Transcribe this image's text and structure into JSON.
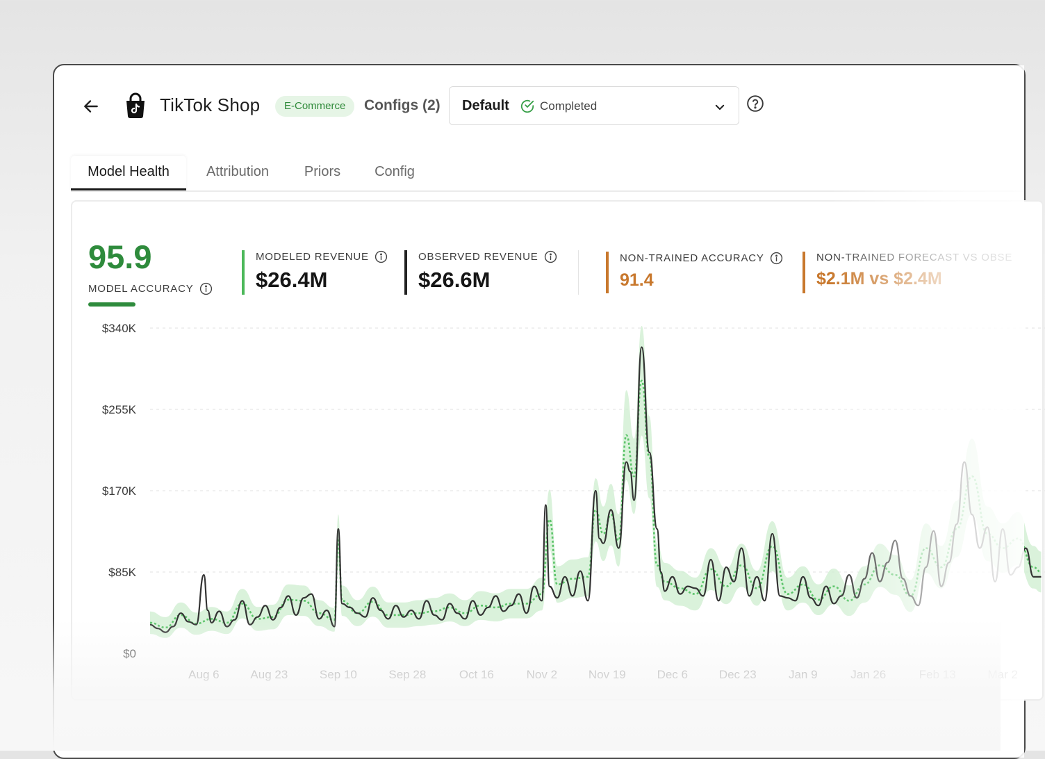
{
  "header": {
    "app_title": "TikTok Shop",
    "category_badge": "E-Commerce",
    "configs_label": "Configs (2)",
    "config_select": {
      "name": "Default",
      "status": "Completed"
    }
  },
  "tabs": [
    {
      "label": "Model Health",
      "active": true
    },
    {
      "label": "Attribution",
      "active": false
    },
    {
      "label": "Priors",
      "active": false
    },
    {
      "label": "Config",
      "active": false
    }
  ],
  "metrics": {
    "model_accuracy": {
      "value": "95.9",
      "label": "MODEL ACCURACY",
      "color": "#2e8b3c"
    },
    "modeled_revenue": {
      "label": "MODELED REVENUE",
      "value": "$26.4M",
      "color": "#4cb85a"
    },
    "observed_revenue": {
      "label": "OBSERVED REVENUE",
      "value": "$26.6M",
      "color": "#222222"
    },
    "non_trained_accuracy": {
      "label": "NON-TRAINED ACCURACY",
      "value": "91.4",
      "color": "#c8782d"
    },
    "non_trained_forecast": {
      "label": "NON-TRAINED FORECAST VS OBSE",
      "value": "$2.1M vs $2.4M",
      "color": "#c8782d"
    }
  },
  "chart_data": {
    "type": "line",
    "title": "",
    "xlabel": "",
    "ylabel": "",
    "ylim": [
      0,
      340000
    ],
    "y_ticks": [
      {
        "value": 340000,
        "label": "$340K"
      },
      {
        "value": 255000,
        "label": "$255K"
      },
      {
        "value": 170000,
        "label": "$170K"
      },
      {
        "value": 85000,
        "label": "$85K"
      },
      {
        "value": 0,
        "label": "$0"
      }
    ],
    "x_ticks": [
      {
        "day": 24,
        "label": "Aug 6"
      },
      {
        "day": 41,
        "label": "Aug 23"
      },
      {
        "day": 59,
        "label": "Sep 10"
      },
      {
        "day": 77,
        "label": "Sep 28"
      },
      {
        "day": 95,
        "label": "Oct 16"
      },
      {
        "day": 112,
        "label": "Nov 2"
      },
      {
        "day": 129,
        "label": "Nov 19"
      },
      {
        "day": 146,
        "label": "Dec 6"
      },
      {
        "day": 163,
        "label": "Dec 23"
      },
      {
        "day": 180,
        "label": "Jan 9"
      },
      {
        "day": 197,
        "label": "Jan 26"
      },
      {
        "day": 215,
        "label": "Feb 13"
      },
      {
        "day": 232,
        "label": "Mar 2"
      }
    ],
    "x_range": [
      10,
      243
    ],
    "series_colors": {
      "observed": "#333333",
      "modeled": "#5cc46a",
      "band": "#cdeecf"
    },
    "series": [
      {
        "name": "observed",
        "x": [
          10,
          12,
          14,
          16,
          18,
          20,
          22,
          24,
          25,
          26,
          28,
          30,
          32,
          34,
          36,
          38,
          40,
          42,
          44,
          46,
          48,
          50,
          52,
          54,
          56,
          58,
          59,
          60,
          62,
          64,
          66,
          68,
          70,
          72,
          74,
          76,
          78,
          80,
          82,
          84,
          86,
          88,
          90,
          92,
          94,
          96,
          98,
          100,
          102,
          104,
          106,
          108,
          110,
          112,
          113,
          114,
          116,
          118,
          120,
          122,
          124,
          126,
          127,
          128,
          130,
          132,
          134,
          135,
          136,
          138,
          140,
          142,
          143,
          144,
          146,
          148,
          150,
          152,
          154,
          156,
          158,
          160,
          162,
          164,
          166,
          168,
          170,
          172,
          174,
          176,
          178,
          180,
          182,
          184,
          186,
          188,
          190,
          192,
          194,
          196,
          198,
          200,
          202,
          204,
          206,
          208,
          210,
          212,
          214,
          216,
          218,
          220,
          222,
          224,
          226,
          228,
          230,
          232,
          234,
          236,
          238,
          240,
          242
        ],
        "values": [
          30000,
          26000,
          22000,
          28000,
          42000,
          33000,
          30000,
          82000,
          45000,
          32000,
          44000,
          28000,
          35000,
          55000,
          30000,
          38000,
          50000,
          35000,
          48000,
          60000,
          40000,
          58000,
          62000,
          36000,
          45000,
          28000,
          130000,
          52000,
          48000,
          42000,
          38000,
          58000,
          45000,
          36000,
          50000,
          38000,
          45000,
          36000,
          55000,
          40000,
          35000,
          52000,
          42000,
          36000,
          55000,
          40000,
          48000,
          60000,
          44000,
          50000,
          62000,
          42000,
          70000,
          55000,
          155000,
          70000,
          58000,
          80000,
          60000,
          86000,
          55000,
          170000,
          120000,
          115000,
          150000,
          110000,
          200000,
          190000,
          160000,
          320000,
          210000,
          130000,
          85000,
          65000,
          80000,
          62000,
          70000,
          68000,
          60000,
          98000,
          55000,
          90000,
          75000,
          110000,
          60000,
          80000,
          55000,
          125000,
          60000,
          58000,
          55000,
          80000,
          58000,
          50000,
          70000,
          52000,
          60000,
          82000,
          58000,
          78000,
          105000,
          75000,
          95000,
          118000,
          78000,
          60000,
          50000,
          90000,
          128000,
          70000,
          95000,
          135000,
          200000,
          145000,
          110000,
          132000,
          75000,
          130000,
          82000,
          90000,
          110000,
          80000,
          80000
        ]
      },
      {
        "name": "modeled",
        "x": [
          10,
          14,
          18,
          22,
          26,
          30,
          34,
          38,
          42,
          46,
          50,
          54,
          58,
          59,
          60,
          64,
          68,
          72,
          76,
          80,
          84,
          88,
          92,
          96,
          100,
          104,
          108,
          112,
          114,
          116,
          120,
          124,
          126,
          128,
          130,
          132,
          134,
          136,
          138,
          140,
          142,
          144,
          148,
          152,
          156,
          160,
          164,
          168,
          172,
          176,
          180,
          184,
          188,
          192,
          196,
          200,
          204,
          208,
          212,
          216,
          220,
          224,
          228,
          232,
          236,
          240,
          242
        ],
        "values": [
          32000,
          27000,
          40000,
          31000,
          36000,
          32000,
          52000,
          36000,
          38000,
          56000,
          55000,
          42000,
          35000,
          118000,
          55000,
          42000,
          54000,
          40000,
          40000,
          42000,
          44000,
          48000,
          42000,
          50000,
          48000,
          52000,
          52000,
          62000,
          140000,
          72000,
          78000,
          80000,
          150000,
          125000,
          145000,
          118000,
          228000,
          185000,
          285000,
          205000,
          92000,
          75000,
          68000,
          62000,
          88000,
          70000,
          92000,
          68000,
          112000,
          62000,
          72000,
          56000,
          70000,
          55000,
          72000,
          92000,
          82000,
          60000,
          110000,
          90000,
          130000,
          185000,
          125000,
          110000,
          120000,
          90000,
          85000
        ]
      }
    ]
  }
}
